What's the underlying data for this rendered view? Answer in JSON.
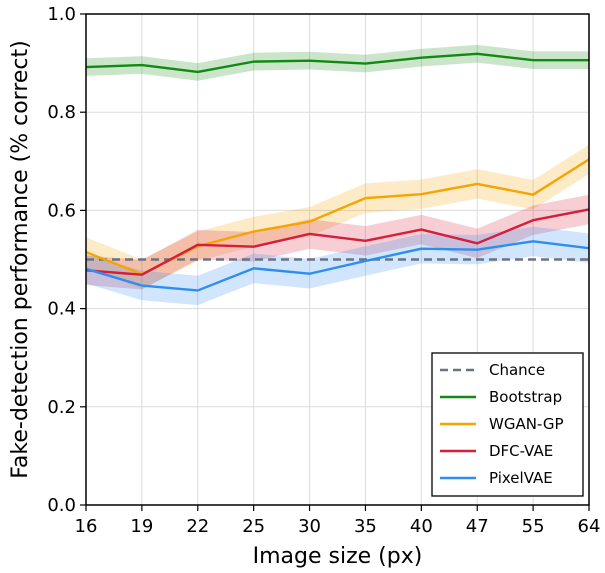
{
  "chart_data": {
    "type": "line",
    "xlabel": "Image size (px)",
    "ylabel": "Fake-detection performance (% correct)",
    "ylim": [
      0.0,
      1.0
    ],
    "yticks": [
      "0.0",
      "0.2",
      "0.4",
      "0.6",
      "0.8",
      "1.0"
    ],
    "categories": [
      "16",
      "19",
      "22",
      "25",
      "30",
      "35",
      "40",
      "47",
      "55",
      "64"
    ],
    "grid": true,
    "legend_position": "bottom-right",
    "series": [
      {
        "name": "Chance",
        "color": "#6b7280",
        "dashed": true,
        "values": [
          0.5,
          0.5,
          0.5,
          0.5,
          0.5,
          0.5,
          0.5,
          0.5,
          0.5,
          0.5
        ],
        "band": 0
      },
      {
        "name": "Bootstrap",
        "color": "#118a11",
        "dashed": false,
        "values": [
          0.892,
          0.896,
          0.882,
          0.903,
          0.905,
          0.899,
          0.911,
          0.919,
          0.906,
          0.906
        ],
        "band": 0.018
      },
      {
        "name": "WGAN-GP",
        "color": "#f5a400",
        "dashed": false,
        "values": [
          0.515,
          0.47,
          0.527,
          0.557,
          0.577,
          0.625,
          0.633,
          0.654,
          0.632,
          0.704
        ],
        "band": 0.03
      },
      {
        "name": "DFC-VAE",
        "color": "#d41e3c",
        "dashed": false,
        "values": [
          0.478,
          0.469,
          0.53,
          0.526,
          0.552,
          0.538,
          0.561,
          0.533,
          0.58,
          0.602
        ],
        "band": 0.03
      },
      {
        "name": "PixelVAE",
        "color": "#2e8ef0",
        "dashed": false,
        "values": [
          0.481,
          0.447,
          0.437,
          0.482,
          0.471,
          0.497,
          0.522,
          0.52,
          0.537,
          0.523
        ],
        "band": 0.03
      }
    ]
  }
}
